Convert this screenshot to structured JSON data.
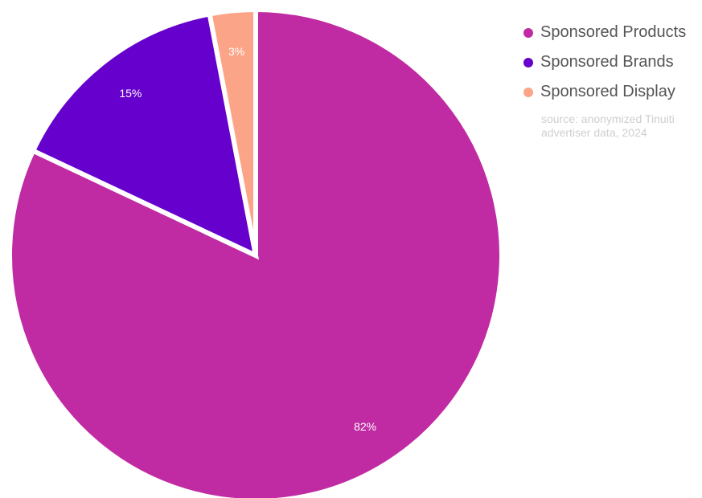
{
  "chart_data": {
    "type": "pie",
    "title": "",
    "start_angle_deg": 0,
    "direction": "clockwise",
    "slices": [
      {
        "name": "Sponsored Products",
        "value": 82,
        "label": "82%",
        "color": "#c02aa3"
      },
      {
        "name": "Sponsored Brands",
        "value": 15,
        "label": "15%",
        "color": "#6600cc"
      },
      {
        "name": "Sponsored Display",
        "value": 3,
        "label": "3%",
        "color": "#fca487"
      }
    ],
    "legend_placement": "top-right",
    "annotation": "source: anonymized Tinuiti advertiser data, 2024"
  }
}
